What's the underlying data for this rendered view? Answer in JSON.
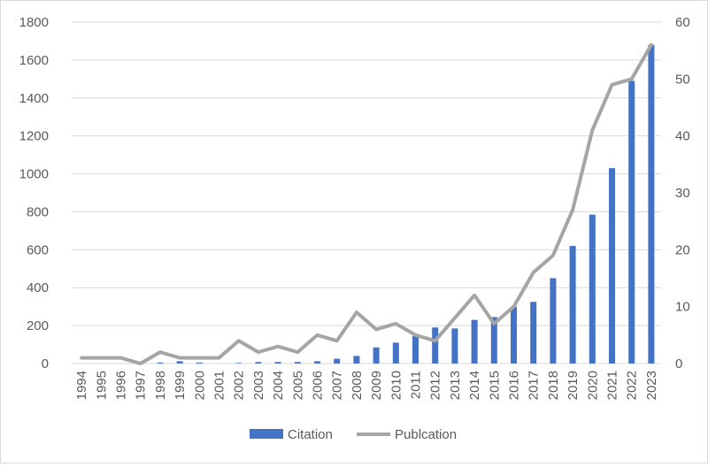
{
  "chart_data": {
    "type": "bar",
    "title": "",
    "xlabel": "",
    "ylabel": "",
    "categories": [
      "1994",
      "1995",
      "1996",
      "1997",
      "1998",
      "1999",
      "2000",
      "2001",
      "2002",
      "2003",
      "2004",
      "2005",
      "2006",
      "2007",
      "2008",
      "2009",
      "2010",
      "2011",
      "2012",
      "2013",
      "2014",
      "2015",
      "2016",
      "2017",
      "2018",
      "2019",
      "2020",
      "2021",
      "2022",
      "2023"
    ],
    "series": [
      {
        "name": "Citation",
        "type": "bar",
        "axis": "left",
        "color": "#4472c4",
        "values": [
          0,
          0,
          0,
          0,
          5,
          12,
          5,
          0,
          3,
          8,
          8,
          8,
          12,
          25,
          40,
          85,
          110,
          145,
          190,
          185,
          230,
          245,
          300,
          325,
          450,
          620,
          785,
          1030,
          1490,
          1680
        ]
      },
      {
        "name": "Publcation",
        "type": "line",
        "axis": "right",
        "color": "#a5a5a5",
        "values": [
          1,
          1,
          1,
          0,
          2,
          1,
          1,
          1,
          4,
          2,
          3,
          2,
          5,
          4,
          9,
          6,
          7,
          5,
          4,
          8,
          12,
          7,
          10,
          16,
          19,
          27,
          41,
          49,
          50,
          56
        ]
      }
    ],
    "ylim_left": [
      0,
      1800
    ],
    "yticks_left": [
      "0",
      "200",
      "400",
      "600",
      "800",
      "1000",
      "1200",
      "1400",
      "1600",
      "1800"
    ],
    "ylim_right": [
      0,
      60
    ],
    "yticks_right": [
      "0",
      "10",
      "20",
      "30",
      "40",
      "50",
      "60"
    ],
    "grid": true,
    "legend": {
      "position": "bottom",
      "items": [
        {
          "label": "Citation",
          "kind": "bar",
          "color": "#4472c4"
        },
        {
          "label": "Publcation",
          "kind": "line",
          "color": "#a5a5a5"
        }
      ]
    }
  }
}
